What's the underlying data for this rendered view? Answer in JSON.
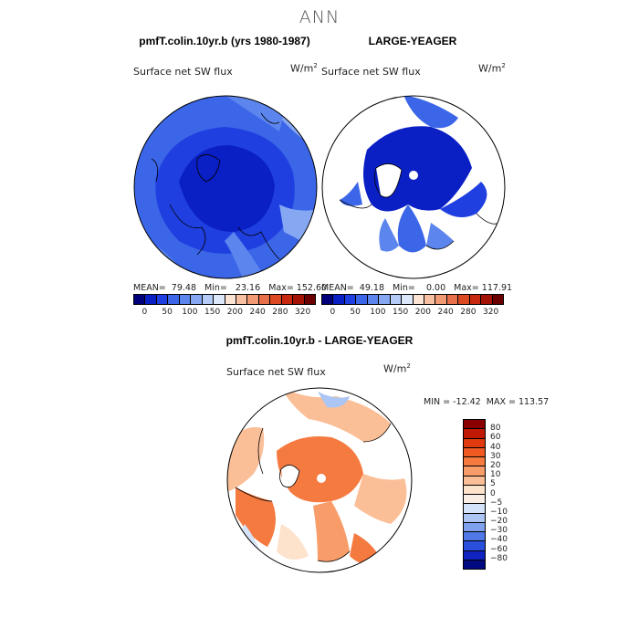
{
  "title": "ANN",
  "panels": [
    {
      "title": "pmfT.colin.10yr.b (yrs 1980-1987)",
      "variable": "Surface net SW flux",
      "units": "W/m",
      "units_sup": "2",
      "stats": "MEAN=  79.48   Min=   23.16   Max= 152.60"
    },
    {
      "title": "LARGE-YEAGER",
      "variable": "Surface net SW flux",
      "units": "W/m",
      "units_sup": "2",
      "stats": "MEAN=  49.18   Min=    0.00   Max= 117.91"
    },
    {
      "title": "pmfT.colin.10yr.b - LARGE-YEAGER",
      "variable": "Surface net SW flux",
      "units": "W/m",
      "units_sup": "2",
      "stats": "MIN = -12.42  MAX = 113.57"
    }
  ],
  "colorbar_abs": {
    "labels": [
      "0",
      "50",
      "100",
      "150",
      "200",
      "240",
      "280",
      "320"
    ],
    "colors": [
      "#00007a",
      "#0a1fc4",
      "#1f3fe0",
      "#3c66e8",
      "#5c86ee",
      "#86a8f2",
      "#b3cbf6",
      "#dce7fa",
      "#fbe4d4",
      "#f7c0a2",
      "#f19a73",
      "#e8704a",
      "#dc4a24",
      "#c82810",
      "#a31205",
      "#6b0000"
    ]
  },
  "colorbar_diff": {
    "labels": [
      "80",
      "60",
      "40",
      "30",
      "20",
      "10",
      "5",
      "0",
      "−5",
      "−10",
      "−20",
      "−30",
      "−40",
      "−60",
      "−80"
    ],
    "colors": [
      "#8a0000",
      "#c01a04",
      "#e03a0e",
      "#f05a22",
      "#f57a40",
      "#f89c6a",
      "#fbbf98",
      "#fde2cc",
      "#f8eee6",
      "#d5e3f8",
      "#abc6f4",
      "#80a2ee",
      "#5078e6",
      "#2a4fdc",
      "#1023c0",
      "#000a80"
    ]
  }
}
